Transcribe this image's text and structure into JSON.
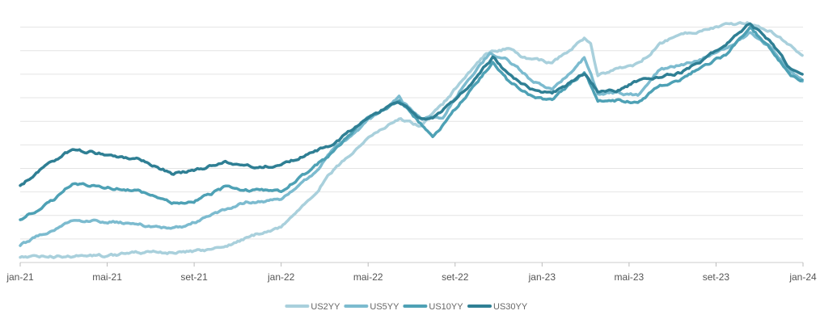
{
  "chart_data": {
    "type": "line",
    "title": "",
    "xlabel": "",
    "ylabel": "",
    "x_ticks": [
      "jan-21",
      "mai-21",
      "set-21",
      "jan-22",
      "mai-22",
      "set-22",
      "jan-23",
      "mai-23",
      "set-23",
      "jan-24"
    ],
    "grid": "horizontal",
    "legend_position": "bottom",
    "series": [
      {
        "name": "US2YY",
        "color": "#a9d0dc",
        "points": [
          [
            "2021-01-01",
            0.12
          ],
          [
            "2021-03-01",
            0.13
          ],
          [
            "2021-05-01",
            0.15
          ],
          [
            "2021-07-01",
            0.22
          ],
          [
            "2021-09-01",
            0.22
          ],
          [
            "2021-10-15",
            0.35
          ],
          [
            "2021-12-01",
            0.62
          ],
          [
            "2022-01-01",
            0.75
          ],
          [
            "2022-02-15",
            1.45
          ],
          [
            "2022-03-15",
            1.95
          ],
          [
            "2022-05-01",
            2.65
          ],
          [
            "2022-06-15",
            3.05
          ],
          [
            "2022-07-15",
            2.9
          ],
          [
            "2022-08-15",
            3.35
          ],
          [
            "2022-09-15",
            3.95
          ],
          [
            "2022-10-15",
            4.45
          ],
          [
            "2022-11-15",
            4.55
          ],
          [
            "2022-12-15",
            4.3
          ],
          [
            "2023-01-15",
            4.25
          ],
          [
            "2023-03-01",
            4.75
          ],
          [
            "2023-03-10",
            4.65
          ],
          [
            "2023-03-20",
            3.95
          ],
          [
            "2023-04-15",
            4.1
          ],
          [
            "2023-05-15",
            4.2
          ],
          [
            "2023-06-15",
            4.65
          ],
          [
            "2023-07-15",
            4.85
          ],
          [
            "2023-08-15",
            4.95
          ],
          [
            "2023-09-15",
            5.05
          ],
          [
            "2023-10-15",
            5.1
          ],
          [
            "2023-11-15",
            4.95
          ],
          [
            "2023-12-15",
            4.6
          ],
          [
            "2023-12-31",
            4.4
          ]
        ]
      },
      {
        "name": "US5YY",
        "color": "#7cbbcf",
        "points": [
          [
            "2021-01-01",
            0.37
          ],
          [
            "2021-02-15",
            0.7
          ],
          [
            "2021-03-15",
            0.9
          ],
          [
            "2021-05-01",
            0.88
          ],
          [
            "2021-07-15",
            0.75
          ],
          [
            "2021-08-15",
            0.75
          ],
          [
            "2021-10-01",
            1.05
          ],
          [
            "2021-11-15",
            1.3
          ],
          [
            "2022-01-01",
            1.32
          ],
          [
            "2022-02-15",
            1.9
          ],
          [
            "2022-03-15",
            2.4
          ],
          [
            "2022-05-01",
            3.0
          ],
          [
            "2022-06-15",
            3.5
          ],
          [
            "2022-06-20",
            3.4
          ],
          [
            "2022-07-15",
            3.05
          ],
          [
            "2022-08-15",
            3.1
          ],
          [
            "2022-09-15",
            3.8
          ],
          [
            "2022-10-20",
            4.45
          ],
          [
            "2022-11-15",
            4.3
          ],
          [
            "2022-12-15",
            3.9
          ],
          [
            "2023-01-15",
            3.65
          ],
          [
            "2023-03-01",
            4.35
          ],
          [
            "2023-03-20",
            3.6
          ],
          [
            "2023-04-15",
            3.6
          ],
          [
            "2023-05-15",
            3.55
          ],
          [
            "2023-06-15",
            4.1
          ],
          [
            "2023-07-15",
            4.2
          ],
          [
            "2023-08-15",
            4.35
          ],
          [
            "2023-09-15",
            4.55
          ],
          [
            "2023-10-19",
            4.9
          ],
          [
            "2023-11-15",
            4.6
          ],
          [
            "2023-12-15",
            4.05
          ],
          [
            "2023-12-31",
            3.85
          ]
        ]
      },
      {
        "name": "US10YY",
        "color": "#4ea1b5",
        "points": [
          [
            "2021-01-01",
            0.92
          ],
          [
            "2021-02-15",
            1.3
          ],
          [
            "2021-03-15",
            1.7
          ],
          [
            "2021-05-01",
            1.62
          ],
          [
            "2021-06-15",
            1.5
          ],
          [
            "2021-08-01",
            1.25
          ],
          [
            "2021-09-01",
            1.3
          ],
          [
            "2021-10-15",
            1.6
          ],
          [
            "2021-11-15",
            1.55
          ],
          [
            "2022-01-01",
            1.52
          ],
          [
            "2022-02-15",
            2.0
          ],
          [
            "2022-03-15",
            2.35
          ],
          [
            "2022-04-15",
            2.85
          ],
          [
            "2022-05-01",
            3.05
          ],
          [
            "2022-06-15",
            3.45
          ],
          [
            "2022-07-15",
            2.95
          ],
          [
            "2022-08-01",
            2.65
          ],
          [
            "2022-09-01",
            3.25
          ],
          [
            "2022-10-01",
            3.8
          ],
          [
            "2022-10-24",
            4.25
          ],
          [
            "2022-11-15",
            3.85
          ],
          [
            "2022-12-15",
            3.55
          ],
          [
            "2023-01-15",
            3.45
          ],
          [
            "2023-03-01",
            4.05
          ],
          [
            "2023-03-20",
            3.45
          ],
          [
            "2023-04-15",
            3.45
          ],
          [
            "2023-05-15",
            3.4
          ],
          [
            "2023-06-15",
            3.75
          ],
          [
            "2023-07-15",
            3.9
          ],
          [
            "2023-08-15",
            4.2
          ],
          [
            "2023-09-15",
            4.4
          ],
          [
            "2023-10-19",
            4.99
          ],
          [
            "2023-11-15",
            4.55
          ],
          [
            "2023-12-15",
            4.0
          ],
          [
            "2023-12-31",
            3.88
          ]
        ]
      },
      {
        "name": "US30YY",
        "color": "#2f7f94",
        "points": [
          [
            "2021-01-01",
            1.65
          ],
          [
            "2021-02-15",
            2.15
          ],
          [
            "2021-03-15",
            2.4
          ],
          [
            "2021-05-01",
            2.3
          ],
          [
            "2021-06-15",
            2.2
          ],
          [
            "2021-08-01",
            1.9
          ],
          [
            "2021-09-01",
            1.95
          ],
          [
            "2021-10-15",
            2.15
          ],
          [
            "2021-11-15",
            2.05
          ],
          [
            "2022-01-01",
            2.05
          ],
          [
            "2022-01-15",
            2.15
          ],
          [
            "2022-02-15",
            2.35
          ],
          [
            "2022-03-15",
            2.5
          ],
          [
            "2022-04-15",
            2.9
          ],
          [
            "2022-05-01",
            3.1
          ],
          [
            "2022-06-15",
            3.4
          ],
          [
            "2022-07-15",
            3.05
          ],
          [
            "2022-08-01",
            3.05
          ],
          [
            "2022-09-01",
            3.45
          ],
          [
            "2022-10-01",
            3.95
          ],
          [
            "2022-10-24",
            4.35
          ],
          [
            "2022-11-15",
            4.0
          ],
          [
            "2022-12-15",
            3.7
          ],
          [
            "2023-01-15",
            3.6
          ],
          [
            "2023-03-01",
            4.0
          ],
          [
            "2023-03-20",
            3.65
          ],
          [
            "2023-04-15",
            3.65
          ],
          [
            "2023-05-15",
            3.85
          ],
          [
            "2023-06-15",
            3.95
          ],
          [
            "2023-07-15",
            4.05
          ],
          [
            "2023-08-15",
            4.3
          ],
          [
            "2023-09-15",
            4.65
          ],
          [
            "2023-10-19",
            5.1
          ],
          [
            "2023-11-15",
            4.7
          ],
          [
            "2023-12-15",
            4.1
          ],
          [
            "2023-12-31",
            4.0
          ]
        ]
      }
    ]
  }
}
